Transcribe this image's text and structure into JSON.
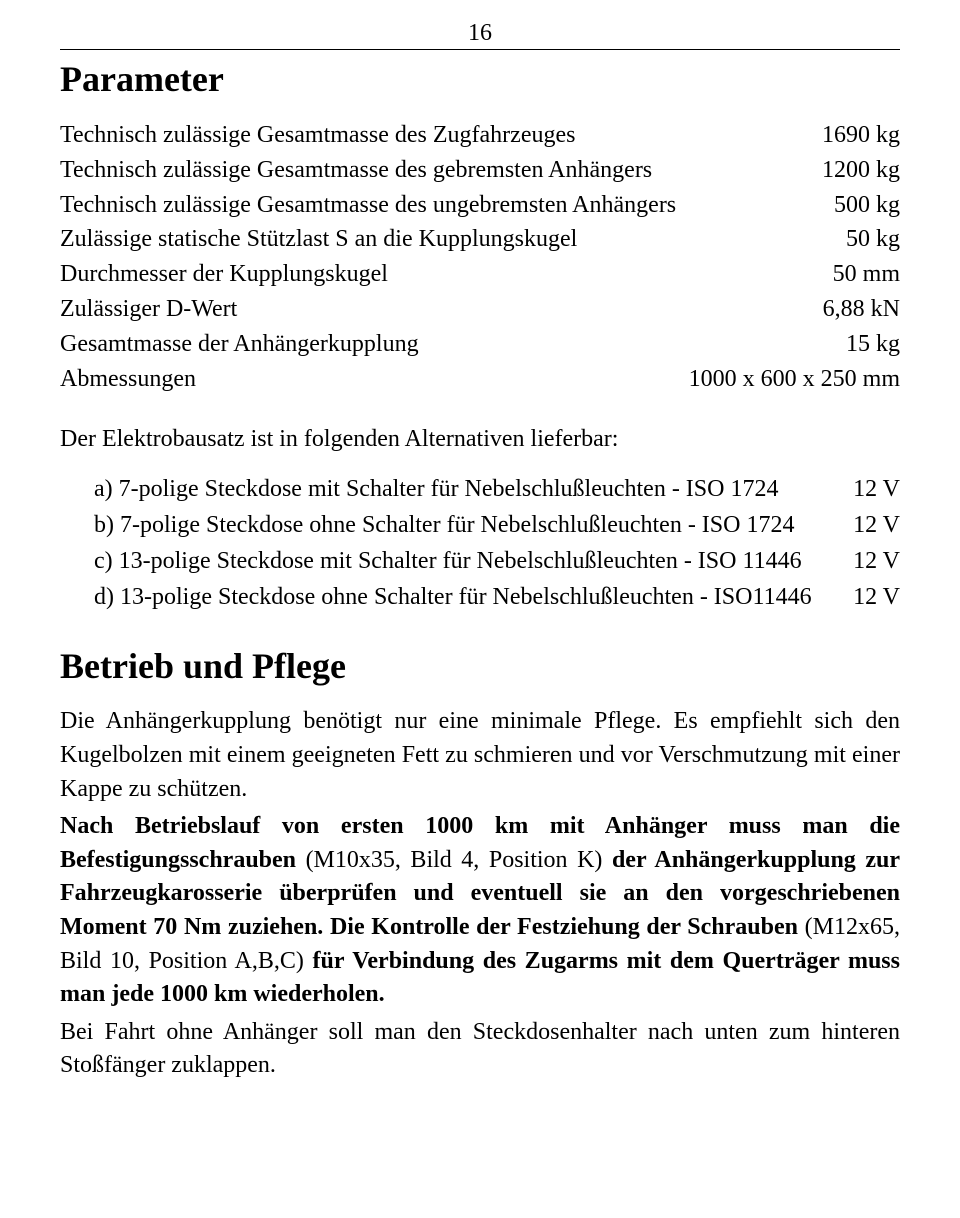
{
  "page_number": "16",
  "sections": {
    "parameter": {
      "title": "Parameter",
      "rows": [
        {
          "label": "Technisch zulässige Gesamtmasse des Zugfahrzeuges",
          "value": "1690 kg"
        },
        {
          "label": "Technisch zulässige Gesamtmasse des gebremsten Anhängers",
          "value": "1200 kg"
        },
        {
          "label": "Technisch zulässige Gesamtmasse des ungebremsten Anhängers",
          "value": "500 kg"
        },
        {
          "label": "Zulässige statische Stützlast S an die Kupplungskugel",
          "value": "50 kg"
        },
        {
          "label": "Durchmesser der Kupplungskugel",
          "value": "50 mm"
        },
        {
          "label": "Zulässiger D-Wert",
          "value": "6,88 kN"
        },
        {
          "label": "Gesamtmasse der Anhängerkupplung",
          "value": "15 kg"
        },
        {
          "label": "Abmessungen",
          "value": "1000 x 600 x 250 mm"
        }
      ],
      "intro_line": "Der Elektrobausatz ist in folgenden Alternativen lieferbar:",
      "options": [
        {
          "text": "a)  7-polige Steckdose mit Schalter für Nebelschlußleuchten - ISO 1724",
          "value": "12 V"
        },
        {
          "text": "b)  7-polige Steckdose ohne Schalter für Nebelschlußleuchten - ISO 1724",
          "value": "12 V"
        },
        {
          "text": "c)  13-polige Steckdose mit Schalter für Nebelschlußleuchten - ISO 11446",
          "value": "12 V"
        },
        {
          "text": "d)  13-polige Steckdose ohne Schalter für Nebelschlußleuchten - ISO11446",
          "value": "12 V"
        }
      ]
    },
    "betrieb": {
      "title": "Betrieb und Pflege",
      "p1": "Die Anhängerkupplung benötigt nur eine minimale Pflege. Es empfiehlt sich den Kugelbolzen mit einem geeigneten Fett zu schmieren und vor Verschmutzung mit einer Kappe zu schützen.",
      "p2_runs": [
        {
          "t": "Nach Betriebslauf von ersten 1000 km mit Anhänger muss man die Befestigungsschrauben ",
          "b": true
        },
        {
          "t": "(M10x35, Bild 4, Position K) ",
          "b": false
        },
        {
          "t": "der Anhängerkupplung zur Fahrzeugkarosserie überprüfen und eventuell sie an den vorgeschriebenen Moment 70 Nm zuziehen. Die Kontrolle der Festziehung der Schrauben ",
          "b": true
        },
        {
          "t": "(M12x65, Bild 10, Position A,B,C) ",
          "b": false
        },
        {
          "t": "für Verbindung des Zugarms mit dem Querträger muss man jede 1000 km wiederholen.",
          "b": true
        }
      ],
      "p3": "Bei Fahrt ohne Anhänger soll man den Steckdosenhalter nach unten zum hinteren Stoßfänger zuklappen."
    }
  },
  "style": {
    "font_family": "Times New Roman",
    "body_fontsize_pt": 18,
    "heading_fontsize_pt": 27,
    "text_color": "#000000",
    "background_color": "#ffffff",
    "rule_color": "#000000"
  }
}
